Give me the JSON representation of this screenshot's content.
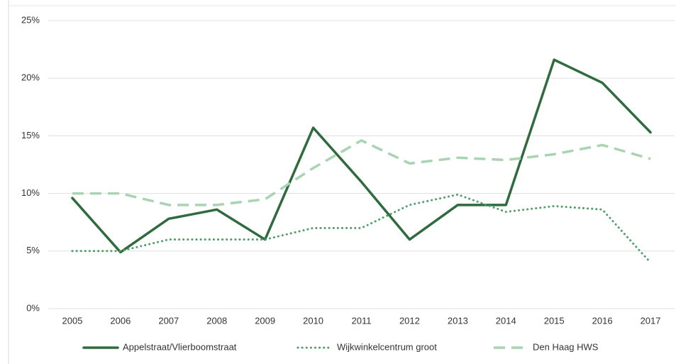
{
  "chart_data": {
    "type": "line",
    "categories": [
      "2005",
      "2006",
      "2007",
      "2008",
      "2009",
      "2010",
      "2011",
      "2012",
      "2013",
      "2014",
      "2015",
      "2016",
      "2017"
    ],
    "series": [
      {
        "name": "Appelstraat/Vlierboomstraat",
        "color": "#2f6b3f",
        "style": "solid",
        "values": [
          9.6,
          4.9,
          7.8,
          8.6,
          6.0,
          15.7,
          11.0,
          6.0,
          9.0,
          9.0,
          21.6,
          19.6,
          15.3
        ]
      },
      {
        "name": "Wijkwinkelcentrum groot",
        "color": "#4f9e69",
        "style": "dotted",
        "values": [
          5.0,
          5.0,
          6.0,
          6.0,
          6.0,
          7.0,
          7.0,
          9.0,
          9.9,
          8.4,
          8.9,
          8.6,
          4.0
        ]
      },
      {
        "name": "Den Haag HWS",
        "color": "#a9d4b1",
        "style": "dashed",
        "values": [
          10.0,
          10.0,
          9.0,
          9.0,
          9.5,
          12.2,
          14.6,
          12.6,
          13.1,
          12.9,
          13.4,
          14.2,
          13.0
        ]
      }
    ],
    "ylim": [
      0,
      25
    ],
    "yticks": [
      {
        "value": 0,
        "label": "0%"
      },
      {
        "value": 5,
        "label": "5%"
      },
      {
        "value": 10,
        "label": "10%"
      },
      {
        "value": 15,
        "label": "15%"
      },
      {
        "value": 20,
        "label": "20%"
      },
      {
        "value": 25,
        "label": "25%"
      }
    ],
    "grid": true,
    "legend": "bottom"
  }
}
